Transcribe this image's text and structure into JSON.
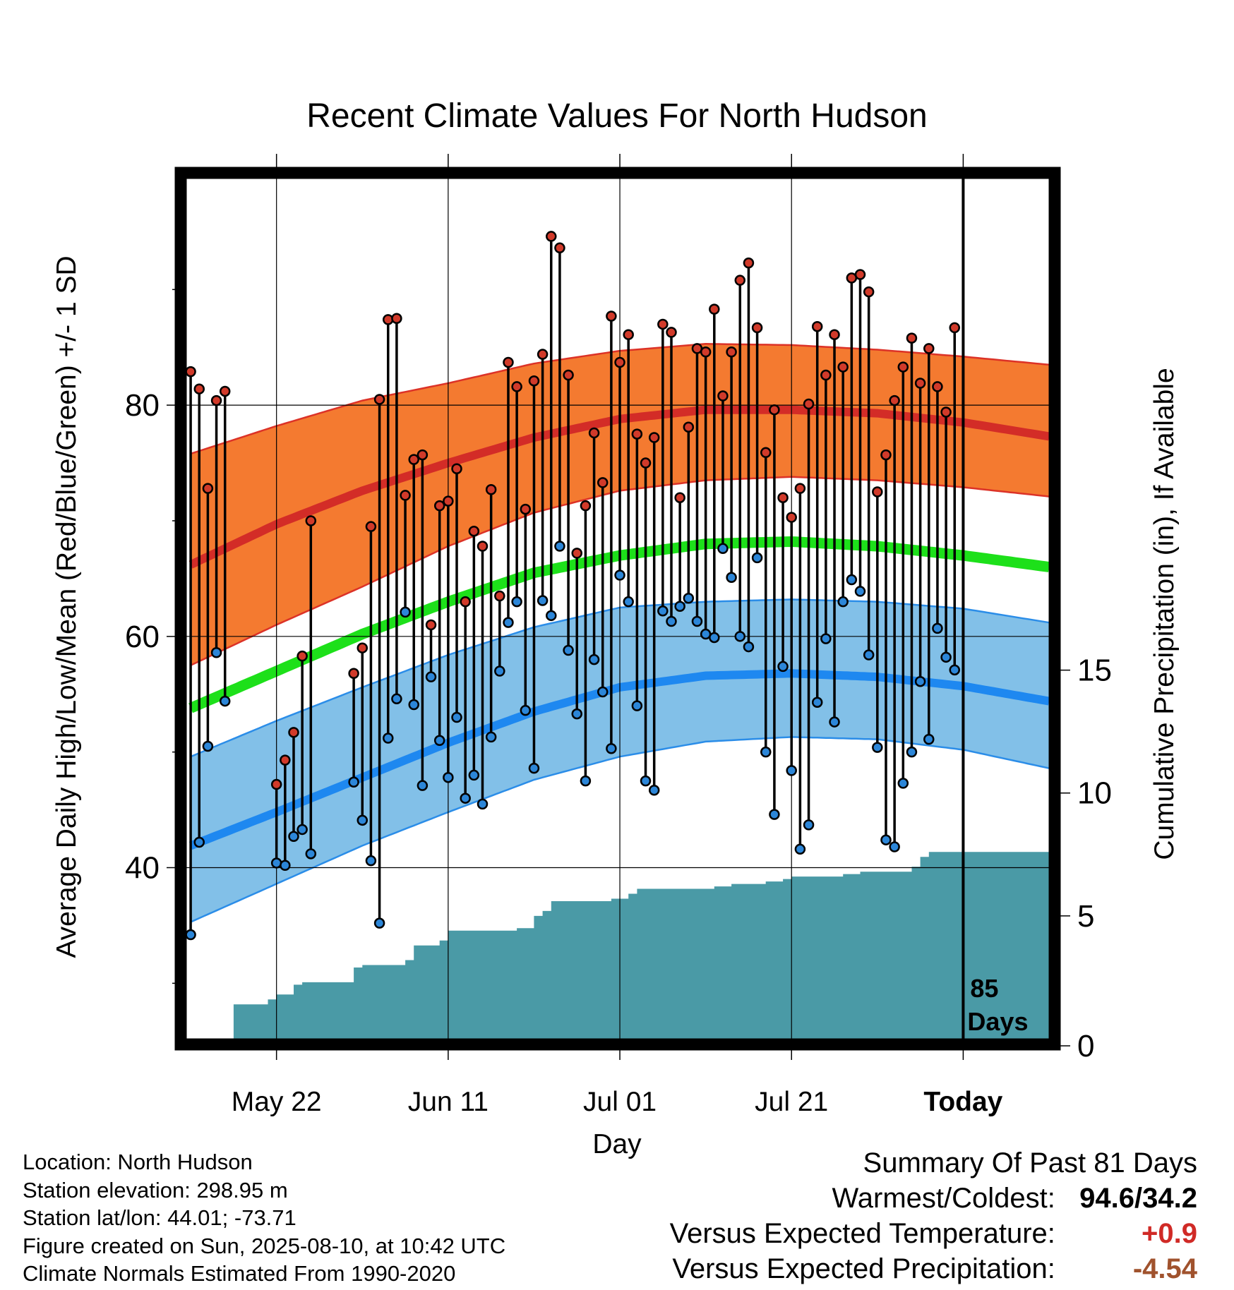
{
  "chart_data": {
    "type": "line",
    "title": "Recent Climate Values For North Hudson",
    "xlabel": "Day",
    "ylabel_left": "Average Daily High/Low/Mean (Red/Blue/Green) +/- 1 SD",
    "ylabel_right": "Cumulative Precipitation (in), If Available",
    "x_ticks": [
      "May 22",
      "Jun 11",
      "Jul 01",
      "Jul 21",
      "Today"
    ],
    "x_tick_days": [
      10,
      30,
      50,
      70,
      90
    ],
    "x_range_days": [
      -0.5,
      100
    ],
    "y_ticks_left": [
      40,
      60,
      80
    ],
    "y_minor_left": [
      30,
      50,
      70,
      90
    ],
    "ylim_left": [
      25.2,
      99.6
    ],
    "y_ticks_right": [
      0,
      5,
      10,
      15
    ],
    "ylim_right": [
      0,
      35
    ],
    "today_marker": {
      "day": 90,
      "label_line1": "85",
      "label_line2": "Days"
    },
    "colors": {
      "high_band": "#f47a30",
      "high_band_edge": "#dc3227",
      "high_mean": "#d32c27",
      "low_band": "#82c0e8",
      "low_band_edge": "#2b8de8",
      "low_mean": "#1e88f0",
      "mean": "#1de01a",
      "precip": "#4a9aa6",
      "high_dot": "#d13a2a",
      "low_dot": "#2c86d8"
    },
    "normals": {
      "days": [
        0,
        10,
        20,
        30,
        40,
        50,
        60,
        70,
        80,
        90,
        100
      ],
      "high_mean": [
        66.2,
        69.7,
        72.6,
        75.0,
        77.2,
        78.8,
        79.6,
        79.6,
        79.3,
        78.5,
        77.3
      ],
      "high_plus_sd": [
        75.8,
        78.2,
        80.4,
        81.9,
        83.6,
        84.7,
        85.3,
        85.2,
        84.8,
        84.2,
        83.5
      ],
      "high_minus_sd": [
        57.5,
        61.0,
        64.3,
        67.8,
        70.7,
        72.6,
        73.5,
        73.8,
        73.5,
        72.9,
        72.1
      ],
      "mean": [
        53.8,
        57.0,
        60.2,
        63.0,
        65.5,
        67.0,
        68.0,
        68.2,
        67.8,
        67.0,
        66.0
      ],
      "low_mean": [
        41.9,
        44.8,
        47.8,
        50.8,
        53.5,
        55.6,
        56.6,
        56.8,
        56.5,
        55.7,
        54.4
      ],
      "low_plus_sd": [
        49.6,
        52.7,
        55.6,
        58.4,
        60.8,
        62.5,
        63.0,
        63.2,
        63.0,
        62.4,
        61.2
      ],
      "low_minus_sd": [
        35.3,
        38.6,
        41.9,
        44.8,
        47.6,
        49.6,
        50.9,
        51.3,
        51.1,
        50.2,
        48.6
      ]
    },
    "series": [
      {
        "name": "Daily High",
        "days": [
          0,
          1,
          2,
          3,
          4,
          10,
          11,
          12,
          13,
          14,
          19,
          20,
          21,
          22,
          23,
          24,
          25,
          26,
          27,
          28,
          29,
          30,
          31,
          32,
          33,
          34,
          35,
          36,
          37,
          38,
          39,
          40,
          41,
          42,
          43,
          44,
          45,
          46,
          47,
          48,
          49,
          50,
          51,
          52,
          53,
          54,
          55,
          56,
          57,
          58,
          59,
          60,
          61,
          62,
          63,
          64,
          65,
          66,
          67,
          68,
          69,
          70,
          71,
          72,
          73,
          74,
          75,
          76,
          77,
          78,
          79,
          80,
          81,
          82,
          83,
          84,
          85,
          86,
          87,
          88,
          89
        ],
        "values": [
          82.9,
          81.4,
          72.8,
          80.4,
          81.2,
          47.2,
          49.3,
          51.7,
          58.3,
          70.0,
          56.8,
          59.0,
          69.5,
          80.5,
          87.4,
          87.5,
          72.2,
          75.3,
          75.7,
          61.0,
          71.3,
          71.7,
          74.5,
          63.0,
          69.1,
          67.8,
          72.7,
          63.5,
          83.7,
          81.6,
          71.0,
          82.1,
          84.4,
          94.6,
          93.6,
          82.6,
          67.2,
          71.3,
          77.6,
          73.3,
          87.7,
          83.7,
          86.1,
          77.5,
          75.0,
          77.2,
          87.0,
          86.3,
          72.0,
          78.1,
          84.9,
          84.6,
          88.3,
          80.8,
          84.6,
          90.8,
          92.3,
          86.7,
          75.9,
          79.6,
          72.0,
          70.3,
          72.8,
          80.1,
          86.8,
          82.6,
          86.1,
          83.3,
          91.0,
          91.3,
          89.8,
          72.5,
          75.7,
          80.4,
          83.3,
          85.8,
          81.9,
          84.9,
          81.6,
          79.4,
          86.7
        ]
      },
      {
        "name": "Daily Low",
        "days": [
          0,
          1,
          2,
          3,
          4,
          10,
          11,
          12,
          13,
          14,
          19,
          20,
          21,
          22,
          23,
          24,
          25,
          26,
          27,
          28,
          29,
          30,
          31,
          32,
          33,
          34,
          35,
          36,
          37,
          38,
          39,
          40,
          41,
          42,
          43,
          44,
          45,
          46,
          47,
          48,
          49,
          50,
          51,
          52,
          53,
          54,
          55,
          56,
          57,
          58,
          59,
          60,
          61,
          62,
          63,
          64,
          65,
          66,
          67,
          68,
          69,
          70,
          71,
          72,
          73,
          74,
          75,
          76,
          77,
          78,
          79,
          80,
          81,
          82,
          83,
          84,
          85,
          86,
          87,
          88,
          89
        ],
        "values": [
          34.2,
          42.2,
          50.5,
          58.6,
          54.4,
          40.4,
          40.2,
          42.7,
          43.3,
          41.2,
          47.4,
          44.1,
          40.6,
          35.2,
          51.2,
          54.6,
          62.1,
          54.1,
          47.1,
          56.5,
          51.0,
          47.8,
          53.0,
          46.0,
          48.0,
          45.5,
          51.3,
          57.0,
          61.2,
          63.0,
          53.6,
          48.6,
          63.1,
          61.8,
          67.8,
          58.8,
          53.3,
          47.5,
          58.0,
          55.2,
          50.3,
          65.3,
          63.0,
          54.0,
          47.5,
          46.7,
          62.2,
          61.3,
          62.6,
          63.3,
          61.3,
          60.2,
          59.9,
          67.6,
          65.1,
          60.0,
          59.1,
          66.8,
          50.0,
          44.6,
          57.4,
          48.4,
          41.6,
          43.7,
          54.3,
          59.8,
          52.6,
          63.0,
          64.9,
          63.9,
          58.4,
          50.4,
          42.4,
          41.8,
          47.3,
          50.0,
          56.1,
          51.1,
          60.7,
          58.2,
          57.1
        ]
      },
      {
        "name": "Cumulative Precipitation",
        "days": [
          4,
          5,
          8,
          9,
          10,
          12,
          13,
          14,
          18,
          19,
          20,
          22,
          23,
          24,
          25,
          26,
          28,
          29,
          30,
          34,
          35,
          36,
          37,
          38,
          40,
          41,
          42,
          47,
          48,
          49,
          50,
          51,
          52,
          53,
          54,
          55,
          56,
          57,
          58,
          59,
          60,
          61,
          62,
          63,
          64,
          65,
          66,
          67,
          68,
          69,
          70,
          71,
          72,
          73,
          74,
          75,
          76,
          77,
          78,
          79,
          80,
          81,
          82,
          83,
          84,
          85,
          86,
          87,
          88,
          89,
          100
        ],
        "values": [
          0,
          1.4,
          1.4,
          1.6,
          1.8,
          2.2,
          2.3,
          2.3,
          2.3,
          2.9,
          3.0,
          3.0,
          3.0,
          3.0,
          3.2,
          3.8,
          3.8,
          4.0,
          4.4,
          4.4,
          4.4,
          4.4,
          4.4,
          4.5,
          5.0,
          5.2,
          5.6,
          5.6,
          5.6,
          5.7,
          5.7,
          5.9,
          6.1,
          6.1,
          6.1,
          6.1,
          6.1,
          6.1,
          6.1,
          6.1,
          6.1,
          6.2,
          6.2,
          6.3,
          6.3,
          6.3,
          6.3,
          6.4,
          6.4,
          6.5,
          6.6,
          6.6,
          6.6,
          6.6,
          6.6,
          6.6,
          6.7,
          6.7,
          6.8,
          6.8,
          6.8,
          6.8,
          6.8,
          6.8,
          7.0,
          7.4,
          7.6,
          7.6,
          7.6,
          7.6,
          7.6
        ]
      }
    ]
  },
  "metadata": {
    "location": "Location: North Hudson",
    "elevation": "Station elevation: 298.95 m",
    "latlon": "Station lat/lon: 44.01; -73.71",
    "created": "Figure created on Sun, 2025-08-10, at 10:42 UTC",
    "normals": "Climate Normals Estimated From 1990-2020"
  },
  "summary": {
    "title": "Summary Of Past 81 Days",
    "warm_cold_label": "Warmest/Coldest:",
    "warm_cold_value": "94.6/34.2",
    "temp_label": "Versus Expected Temperature:",
    "temp_value": "+0.9",
    "temp_color": "#d02a26",
    "precip_label": "Versus Expected Precipitation:",
    "precip_value": "-4.54",
    "precip_color": "#a0522d"
  }
}
